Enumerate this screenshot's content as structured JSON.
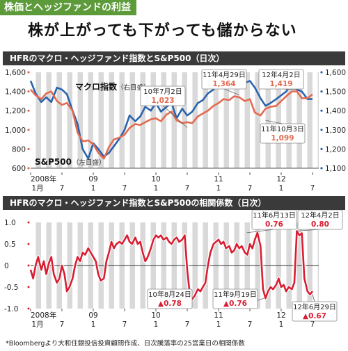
{
  "tag": "株価とヘッジファンドの利益",
  "headline": "株が上がっても下がっても儲からない",
  "note": "*Bloombergより大和住銀投信投資顧問作成、日次騰落率の25営業日の相関係数",
  "colors": {
    "sp500": "#2a63ad",
    "macro": "#e36a50",
    "corr": "#d81e32",
    "bands": "#d9d9d9"
  },
  "chart_data": [
    {
      "type": "line",
      "title": "HFRのマクロ・ヘッジファンド指数とS&P500（日次）",
      "x_ticks": [
        {
          "x": 2008.0,
          "label": "2008年\n1月"
        },
        {
          "x": 2008.5,
          "label": "7"
        },
        {
          "x": 2009.0,
          "label": "09\n1"
        },
        {
          "x": 2009.5,
          "label": "7"
        },
        {
          "x": 2010.0,
          "label": "10\n1"
        },
        {
          "x": 2010.5,
          "label": "7"
        },
        {
          "x": 2011.0,
          "label": "11\n1"
        },
        {
          "x": 2011.5,
          "label": "7"
        },
        {
          "x": 2012.0,
          "label": "12\n1"
        },
        {
          "x": 2012.5,
          "label": "7"
        }
      ],
      "xlim": [
        2008.0,
        2012.6
      ],
      "y_left": {
        "lim": [
          600,
          1600
        ],
        "ticks": [
          600,
          800,
          1000,
          1200,
          1400,
          1600
        ],
        "tick_labels": [
          "600",
          "800",
          "1,000",
          "1,200",
          "1,400",
          "1,600"
        ]
      },
      "y_right": {
        "lim": [
          1100,
          1600
        ],
        "ticks": [
          1100,
          1200,
          1300,
          1400,
          1500,
          1600
        ],
        "tick_labels": [
          "1,100",
          "1,200",
          "1,300",
          "1,400",
          "1,500",
          "1,600"
        ]
      },
      "series": [
        {
          "name": "マクロ指数",
          "axis_note": "（右目盛）",
          "axis": "right",
          "x": [
            2008.0,
            2008.08,
            2008.17,
            2008.25,
            2008.33,
            2008.42,
            2008.5,
            2008.58,
            2008.67,
            2008.75,
            2008.83,
            2008.92,
            2009.0,
            2009.08,
            2009.17,
            2009.25,
            2009.33,
            2009.42,
            2009.5,
            2009.58,
            2009.67,
            2009.75,
            2009.83,
            2009.92,
            2010.0,
            2010.08,
            2010.17,
            2010.25,
            2010.33,
            2010.42,
            2010.5,
            2010.58,
            2010.67,
            2010.75,
            2010.83,
            2010.92,
            2011.0,
            2011.08,
            2011.17,
            2011.25,
            2011.33,
            2011.42,
            2011.5,
            2011.58,
            2011.67,
            2011.75,
            2011.83,
            2011.92,
            2012.0,
            2012.08,
            2012.17,
            2012.25,
            2012.33,
            2012.42,
            2012.5
          ],
          "y": [
            1555,
            1490,
            1445,
            1470,
            1445,
            1520,
            1510,
            1485,
            1400,
            1330,
            1200,
            1150,
            1230,
            1200,
            1160,
            1180,
            1215,
            1255,
            1300,
            1375,
            1345,
            1370,
            1420,
            1400,
            1440,
            1395,
            1420,
            1440,
            1360,
            1410,
            1375,
            1395,
            1440,
            1455,
            1490,
            1510,
            1545,
            1520,
            1560,
            1590,
            1585,
            1545,
            1555,
            1520,
            1465,
            1425,
            1440,
            1460,
            1480,
            1500,
            1545,
            1510,
            1500,
            1460,
            1460
          ]
        },
        {
          "name": "S&P500",
          "axis_note": "（左目盛）",
          "axis": "left",
          "x": [
            2008.0,
            2008.08,
            2008.17,
            2008.25,
            2008.33,
            2008.42,
            2008.5,
            2008.58,
            2008.67,
            2008.75,
            2008.83,
            2008.92,
            2009.0,
            2009.08,
            2009.17,
            2009.25,
            2009.33,
            2009.42,
            2009.5,
            2009.58,
            2009.67,
            2009.75,
            2009.83,
            2009.92,
            2010.0,
            2010.08,
            2010.17,
            2010.25,
            2010.33,
            2010.42,
            2010.5,
            2010.58,
            2010.67,
            2010.75,
            2010.83,
            2010.92,
            2011.0,
            2011.08,
            2011.17,
            2011.25,
            2011.33,
            2011.42,
            2011.5,
            2011.58,
            2011.67,
            2011.75,
            2011.83,
            2011.92,
            2012.0,
            2012.08,
            2012.17,
            2012.25,
            2012.33,
            2012.42,
            2012.5
          ],
          "y": [
            1420,
            1360,
            1320,
            1380,
            1400,
            1300,
            1260,
            1280,
            1200,
            970,
            880,
            890,
            850,
            760,
            700,
            820,
            900,
            920,
            950,
            1020,
            1060,
            1050,
            1080,
            1110,
            1120,
            1090,
            1160,
            1190,
            1100,
            1070,
            1080,
            1070,
            1140,
            1170,
            1200,
            1250,
            1280,
            1320,
            1310,
            1350,
            1340,
            1300,
            1320,
            1180,
            1150,
            1220,
            1240,
            1250,
            1300,
            1350,
            1400,
            1400,
            1330,
            1330,
            1370
          ]
        }
      ],
      "annotations": [
        {
          "date": "10年7月2日",
          "value": "1,023",
          "x": 2010.5,
          "y": 1023,
          "axis": "left"
        },
        {
          "date": "11年4月29日",
          "value": "1,364",
          "x": 2011.33,
          "y": 1364,
          "axis": "left"
        },
        {
          "date": "12年4月2日",
          "value": "1,419",
          "x": 2012.25,
          "y": 1419,
          "axis": "left"
        },
        {
          "date": "11年10月3日",
          "value": "1,099",
          "x": 2011.75,
          "y": 1099,
          "axis": "left"
        }
      ]
    },
    {
      "type": "line",
      "title": "HFRのマクロ・ヘッジファンド指数とS&P500の相関係数（日次）",
      "x_ticks": [
        {
          "x": 2008.0,
          "label": "2008年\n1月"
        },
        {
          "x": 2008.5,
          "label": "7"
        },
        {
          "x": 2009.0,
          "label": "09\n1"
        },
        {
          "x": 2009.5,
          "label": "7"
        },
        {
          "x": 2010.0,
          "label": "10\n1"
        },
        {
          "x": 2010.5,
          "label": "7"
        },
        {
          "x": 2011.0,
          "label": "11\n1"
        },
        {
          "x": 2011.5,
          "label": "7"
        },
        {
          "x": 2012.0,
          "label": "12\n1"
        },
        {
          "x": 2012.5,
          "label": "7"
        }
      ],
      "xlim": [
        2008.0,
        2012.6
      ],
      "ylim": [
        -1.0,
        1.0
      ],
      "y_ticks": [
        -1.0,
        -0.5,
        0,
        0.5,
        1.0
      ],
      "y_tick_labels": [
        "-1.0",
        "-0.5",
        "0",
        "0.5",
        "1.0"
      ],
      "series": [
        {
          "name": "",
          "x": [
            2008.0,
            2008.04,
            2008.08,
            2008.12,
            2008.17,
            2008.21,
            2008.25,
            2008.29,
            2008.33,
            2008.37,
            2008.42,
            2008.46,
            2008.5,
            2008.54,
            2008.58,
            2008.62,
            2008.67,
            2008.71,
            2008.75,
            2008.79,
            2008.83,
            2008.87,
            2008.92,
            2008.96,
            2009.0,
            2009.04,
            2009.08,
            2009.12,
            2009.17,
            2009.21,
            2009.25,
            2009.29,
            2009.33,
            2009.37,
            2009.42,
            2009.46,
            2009.5,
            2009.54,
            2009.58,
            2009.62,
            2009.67,
            2009.71,
            2009.75,
            2009.79,
            2009.83,
            2009.87,
            2009.92,
            2009.96,
            2010.0,
            2010.04,
            2010.08,
            2010.12,
            2010.17,
            2010.21,
            2010.25,
            2010.29,
            2010.33,
            2010.37,
            2010.42,
            2010.46,
            2010.5,
            2010.54,
            2010.58,
            2010.62,
            2010.67,
            2010.71,
            2010.75,
            2010.79,
            2010.83,
            2010.87,
            2010.92,
            2010.96,
            2011.0,
            2011.04,
            2011.08,
            2011.12,
            2011.17,
            2011.21,
            2011.25,
            2011.29,
            2011.33,
            2011.37,
            2011.42,
            2011.46,
            2011.5,
            2011.54,
            2011.58,
            2011.62,
            2011.67,
            2011.71,
            2011.75,
            2011.79,
            2011.83,
            2011.87,
            2011.92,
            2011.96,
            2012.0,
            2012.04,
            2012.08,
            2012.12,
            2012.17,
            2012.21,
            2012.25,
            2012.29,
            2012.33,
            2012.37,
            2012.42,
            2012.46,
            2012.5
          ],
          "y": [
            -0.1,
            -0.3,
            0.0,
            0.2,
            -0.1,
            0.1,
            -0.2,
            0.05,
            0.2,
            -0.2,
            -0.4,
            -0.3,
            0.0,
            -0.2,
            -0.6,
            -0.5,
            -0.3,
            0.0,
            0.2,
            0.1,
            0.3,
            0.25,
            0.4,
            0.3,
            0.2,
            0.1,
            -0.2,
            -0.35,
            -0.3,
            0.1,
            0.3,
            0.55,
            0.4,
            0.5,
            0.55,
            0.5,
            0.6,
            0.7,
            0.55,
            0.5,
            0.65,
            0.5,
            0.55,
            0.3,
            0.1,
            0.2,
            0.4,
            0.6,
            0.7,
            0.65,
            0.7,
            0.6,
            0.65,
            0.55,
            0.5,
            0.6,
            0.65,
            0.55,
            0.6,
            0.7,
            -0.1,
            -0.65,
            -0.78,
            -0.7,
            -0.55,
            -0.6,
            -0.5,
            -0.4,
            0.0,
            0.3,
            0.5,
            0.55,
            0.6,
            0.5,
            0.55,
            0.4,
            0.45,
            0.3,
            0.35,
            0.5,
            0.4,
            0.45,
            0.3,
            0.25,
            0.5,
            0.4,
            0.6,
            0.76,
            0.45,
            -0.55,
            -0.76,
            -0.6,
            -0.5,
            -0.55,
            -0.45,
            -0.3,
            -0.5,
            -0.45,
            -0.6,
            -0.5,
            -0.55,
            -0.4,
            0.8,
            0.7,
            0.75,
            -0.3,
            -0.6,
            -0.67,
            -0.6
          ]
        }
      ],
      "annotations": [
        {
          "date": "11年6月13日",
          "value": "0.76",
          "x": 2011.45,
          "y": 0.76
        },
        {
          "date": "12年4月2日",
          "value": "0.80",
          "x": 2012.25,
          "y": 0.8
        },
        {
          "date": "10年8月24日",
          "value": "▲0.78",
          "x": 2010.58,
          "y": -0.78
        },
        {
          "date": "11年9月19日",
          "value": "▲0.76",
          "x": 2011.72,
          "y": -0.76
        },
        {
          "date": "12年6月29日",
          "value": "▲0.67",
          "x": 2012.5,
          "y": -0.67
        }
      ]
    }
  ]
}
